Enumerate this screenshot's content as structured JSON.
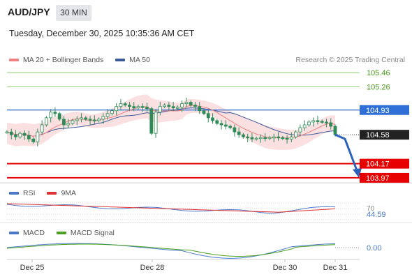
{
  "header": {
    "symbol": "AUD/JPY",
    "timeframe": "30 MIN",
    "timestamp": "Tuesday, December 30, 2025 10:35:36 AM CET"
  },
  "legend": {
    "ma20_label": "MA 20 + Bollinger Bands",
    "ma50_label": "MA 50",
    "credit": "Research © 2025 Trading Central"
  },
  "colors": {
    "ma20": "#f08080",
    "bollinger_fill": "#fadadd",
    "ma50": "#3b5998",
    "candle": "#2e8b57",
    "resistance": "#8fce6f",
    "pivot_blue": "#2f6fd6",
    "support": "#e60000",
    "last_price": "#222222",
    "rsi": "#4a78c8",
    "rsi_9ma": "#e03030",
    "macd": "#4a78c8",
    "macd_signal": "#4aa020"
  },
  "levels": {
    "r2": "105.46",
    "r1": "105.26",
    "pivot": "104.93",
    "last": "104.58",
    "s1": "104.17",
    "s2": "103.97"
  },
  "rsi_panel": {
    "rsi_label": "RSI",
    "ma_label": "9MA",
    "level_70": "70",
    "value": "44.59"
  },
  "macd_panel": {
    "macd_label": "MACD",
    "signal_label": "MACD Signal",
    "value": "0.00"
  },
  "x_axis": {
    "labels": [
      "Dec 25",
      "Dec 28",
      "Dec 30",
      "Dec 31"
    ]
  },
  "chart_data": {
    "type": "line",
    "title": "AUD/JPY",
    "timeframe": "30 MIN",
    "series": [
      {
        "name": "MA 20 + Bollinger Bands"
      },
      {
        "name": "MA 50"
      }
    ],
    "price_close": [
      104.62,
      104.58,
      104.55,
      104.6,
      104.57,
      104.52,
      104.48,
      104.62,
      104.72,
      104.82,
      104.9,
      104.88,
      104.8,
      104.72,
      104.74,
      104.78,
      104.8,
      104.82,
      104.8,
      104.79,
      104.78,
      104.8,
      104.84,
      104.88,
      104.92,
      104.98,
      105.02,
      105.0,
      104.98,
      104.96,
      104.98,
      104.97,
      104.95,
      104.6,
      104.9,
      104.98,
      105.0,
      104.98,
      104.96,
      104.97,
      105.02,
      105.04,
      105.0,
      104.98,
      104.92,
      104.88,
      104.82,
      104.78,
      104.74,
      104.72,
      104.7,
      104.68,
      104.62,
      104.58,
      104.55,
      104.54,
      104.52,
      104.53,
      104.54,
      104.53,
      104.54,
      104.55,
      104.54,
      104.53,
      104.52,
      104.55,
      104.62,
      104.68,
      104.72,
      104.76,
      104.78,
      104.77,
      104.76,
      104.75,
      104.7,
      104.58
    ],
    "x_tick_labels": [
      "Dec 25",
      "Dec 28",
      "Dec 30",
      "Dec 31"
    ],
    "levels": [
      105.46,
      105.26,
      104.93,
      104.58,
      104.17,
      103.97
    ],
    "ylim": [
      103.9,
      105.55
    ],
    "rsi_last": 44.59,
    "rsi_level": 70,
    "macd_last": 0.0
  }
}
